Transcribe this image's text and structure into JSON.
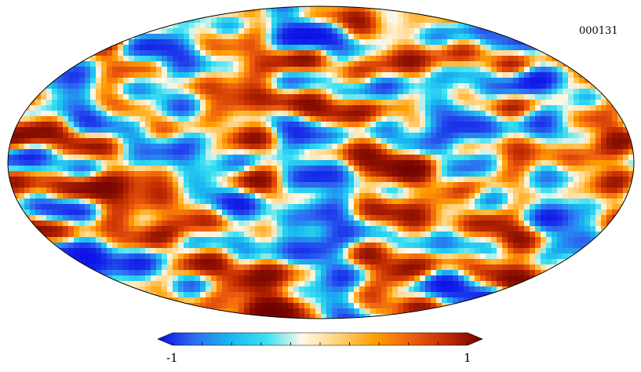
{
  "map": {
    "id_label": "000131",
    "projection": "mollweide",
    "field_type": "random-gaussian-field"
  },
  "colorbar": {
    "min_label": "-1",
    "max_label": "1",
    "min": -1,
    "max": 1,
    "tick_count": 11,
    "stops": [
      "#0a0ae6",
      "#2e6cf0",
      "#19b7ef",
      "#38e0f2",
      "#fff8e8",
      "#ffd27a",
      "#ffa000",
      "#f06010",
      "#c22d00",
      "#6e0000"
    ]
  }
}
